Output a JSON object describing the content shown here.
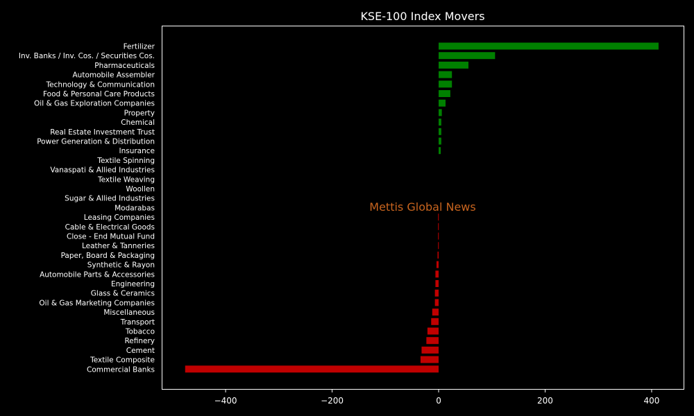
{
  "chart_data": {
    "type": "bar",
    "orientation": "horizontal",
    "title": "KSE-100 Index Movers",
    "watermark": "Mettis Global News",
    "xlabel": "",
    "ylabel": "",
    "xlim": [
      -520,
      460
    ],
    "xticks": [
      -400,
      -200,
      0,
      200,
      400
    ],
    "grid": false,
    "colors": {
      "background": "#000000",
      "positive": "#008000",
      "negative": "#c00000",
      "watermark": "#c8641e",
      "text": "#ffffff"
    },
    "categories": [
      "Fertilizer",
      "Inv. Banks / Inv. Cos. / Securities Cos.",
      "Pharmaceuticals",
      "Automobile Assembler",
      "Technology & Communication",
      "Food & Personal Care Products",
      "Oil & Gas Exploration Companies",
      "Property",
      "Chemical",
      "Real Estate Investment Trust",
      "Power Generation & Distribution",
      "Insurance",
      "Textile Spinning",
      "Vanaspati & Allied Industries",
      "Textile Weaving",
      "Woollen",
      "Sugar & Allied Industries",
      "Modarabas",
      "Leasing Companies",
      "Cable & Electrical Goods",
      "Close - End Mutual Fund",
      "Leather & Tanneries",
      "Paper, Board & Packaging",
      "Synthetic & Rayon",
      "Automobile Parts & Accessories",
      "Engineering",
      "Glass & Ceramics",
      "Oil & Gas Marketing Companies",
      "Miscellaneous",
      "Transport",
      "Tobacco",
      "Refinery",
      "Cement",
      "Textile Composite",
      "Commercial Banks"
    ],
    "values": [
      413,
      106,
      56,
      25,
      25,
      22,
      13,
      6,
      5,
      5,
      5,
      4,
      0,
      0,
      0,
      0,
      0,
      0,
      -1,
      -1,
      -1,
      -1,
      -2,
      -4,
      -6,
      -6,
      -7,
      -7,
      -12,
      -14,
      -21,
      -23,
      -32,
      -34,
      -476
    ]
  }
}
